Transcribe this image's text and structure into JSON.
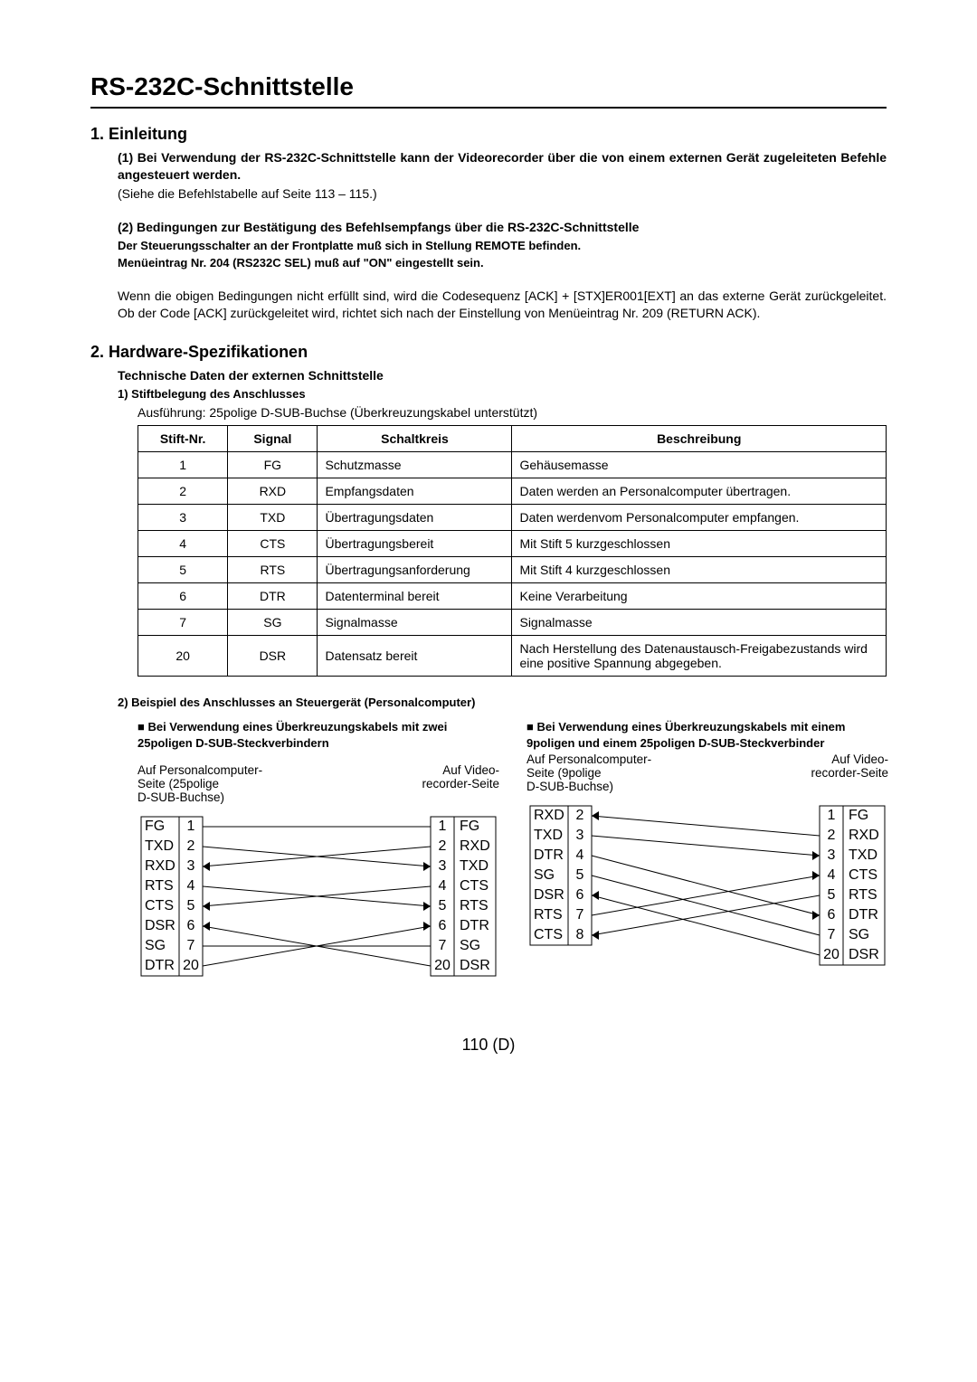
{
  "title": "RS-232C-Schnittstelle",
  "section1": {
    "heading": "1. Einleitung",
    "item1_bold": "(1) Bei Verwendung der RS-232C-Schnittstelle kann der Videorecorder über die von einem externen Gerät zugeleiteten Befehle angesteuert werden.",
    "item1_plain": "(Siehe die Befehlstabelle auf Seite 113 – 115.)",
    "item2_bold_a": "(2) Bedingungen zur Bestätigung des Befehlsempfangs über die RS-232C-Schnittstelle",
    "item2_bold_b": "Der Steuerungsschalter an der Frontplatte muß sich in Stellung REMOTE befinden.",
    "item2_bold_c": "Menüeintrag Nr. 204 (RS232C SEL) muß auf \"ON\" eingestellt sein.",
    "item2_para": "Wenn die obigen Bedingungen nicht erfüllt sind, wird die Codesequenz [ACK] + [STX]ER001[EXT] an das externe Gerät zurückgeleitet. Ob der Code [ACK] zurückgeleitet wird, richtet sich nach der Einstellung von Menüeintrag Nr. 209 (RETURN ACK)."
  },
  "section2": {
    "heading": "2. Hardware-Spezifikationen",
    "sub_bold": "Technische Daten der externen Schnittstelle",
    "pin_heading": "1)  Stiftbelegung des Anschlusses",
    "pin_note": "Ausführung: 25polige D-SUB-Buchse (Überkreuzungskabel unterstützt)",
    "table": {
      "headers": [
        "Stift-Nr.",
        "Signal",
        "Schaltkreis",
        "Beschreibung"
      ],
      "col_widths": [
        "12%",
        "12%",
        "26%",
        "50%"
      ],
      "rows": [
        [
          "1",
          "FG",
          "Schutzmasse",
          "Gehäusemasse"
        ],
        [
          "2",
          "RXD",
          "Empfangsdaten",
          "Daten werden an Personalcomputer übertragen."
        ],
        [
          "3",
          "TXD",
          "Übertragungsdaten",
          "Daten werdenvom Personalcomputer empfangen."
        ],
        [
          "4",
          "CTS",
          "Übertragungsbereit",
          "Mit Stift 5 kurzgeschlossen"
        ],
        [
          "5",
          "RTS",
          "Übertragungsanforderung",
          "Mit Stift 4 kurzgeschlossen"
        ],
        [
          "6",
          "DTR",
          "Datenterminal bereit",
          "Keine Verarbeitung"
        ],
        [
          "7",
          "SG",
          "Signalmasse",
          "Signalmasse"
        ],
        [
          "20",
          "DSR",
          "Datensatz bereit",
          "Nach Herstellung des Datenaustausch-Freigabezustands wird eine positive Spannung abgegeben."
        ]
      ]
    },
    "example_heading": "2)  Beispiel des Anschlusses an Steuergerät (Personalcomputer)",
    "diag_left_title": "■ Bei Verwendung eines Überkreuzungskabels mit zwei 25poligen D-SUB-Steckverbindern",
    "diag_right_title": "■ Bei Verwendung eines Überkreuzungskabels mit einem 9poligen und einem 25poligen D-SUB-Steckverbinder",
    "cap_pc25": "Auf Personalcomputer-\nSeite (25polige\nD-SUB-Buchse)",
    "cap_pc9": "Auf Personalcomputer-\nSeite (9polige\nD-SUB-Buchse)",
    "cap_vcr": "Auf Video-\nrecorder-Seite"
  },
  "diagA": {
    "left_signals": [
      "FG",
      "TXD",
      "RXD",
      "RTS",
      "CTS",
      "DSR",
      "SG",
      "DTR"
    ],
    "left_pins": [
      "1",
      "2",
      "3",
      "4",
      "5",
      "6",
      "7",
      "20"
    ],
    "right_pins": [
      "1",
      "2",
      "3",
      "4",
      "5",
      "6",
      "7",
      "20"
    ],
    "right_signals": [
      "FG",
      "RXD",
      "TXD",
      "CTS",
      "RTS",
      "DTR",
      "SG",
      "DSR"
    ],
    "wires": [
      {
        "from": 0,
        "to": 0,
        "arrow": "none"
      },
      {
        "from": 1,
        "to": 2,
        "arrow": "right"
      },
      {
        "from": 2,
        "to": 1,
        "arrow": "left"
      },
      {
        "from": 3,
        "to": 4,
        "arrow": "right"
      },
      {
        "from": 4,
        "to": 3,
        "arrow": "left"
      },
      {
        "from": 5,
        "to": 7,
        "arrow": "left"
      },
      {
        "from": 6,
        "to": 6,
        "arrow": "none"
      },
      {
        "from": 7,
        "to": 5,
        "arrow": "right"
      }
    ]
  },
  "diagB": {
    "left_signals": [
      "RXD",
      "TXD",
      "DTR",
      "SG",
      "DSR",
      "RTS",
      "CTS"
    ],
    "left_pins": [
      "2",
      "3",
      "4",
      "5",
      "6",
      "7",
      "8"
    ],
    "right_pins": [
      "1",
      "2",
      "3",
      "4",
      "5",
      "6",
      "7",
      "20"
    ],
    "right_signals": [
      "FG",
      "RXD",
      "TXD",
      "CTS",
      "RTS",
      "DTR",
      "SG",
      "DSR"
    ],
    "wires": [
      {
        "from": 0,
        "to": 1,
        "arrow": "left"
      },
      {
        "from": 1,
        "to": 2,
        "arrow": "right"
      },
      {
        "from": 2,
        "to": 5,
        "arrow": "right"
      },
      {
        "from": 3,
        "to": 6,
        "arrow": "none"
      },
      {
        "from": 4,
        "to": 7,
        "arrow": "left"
      },
      {
        "from": 5,
        "to": 3,
        "arrow": "right"
      },
      {
        "from": 6,
        "to": 4,
        "arrow": "left"
      }
    ]
  },
  "page_footer": "110 (D)"
}
